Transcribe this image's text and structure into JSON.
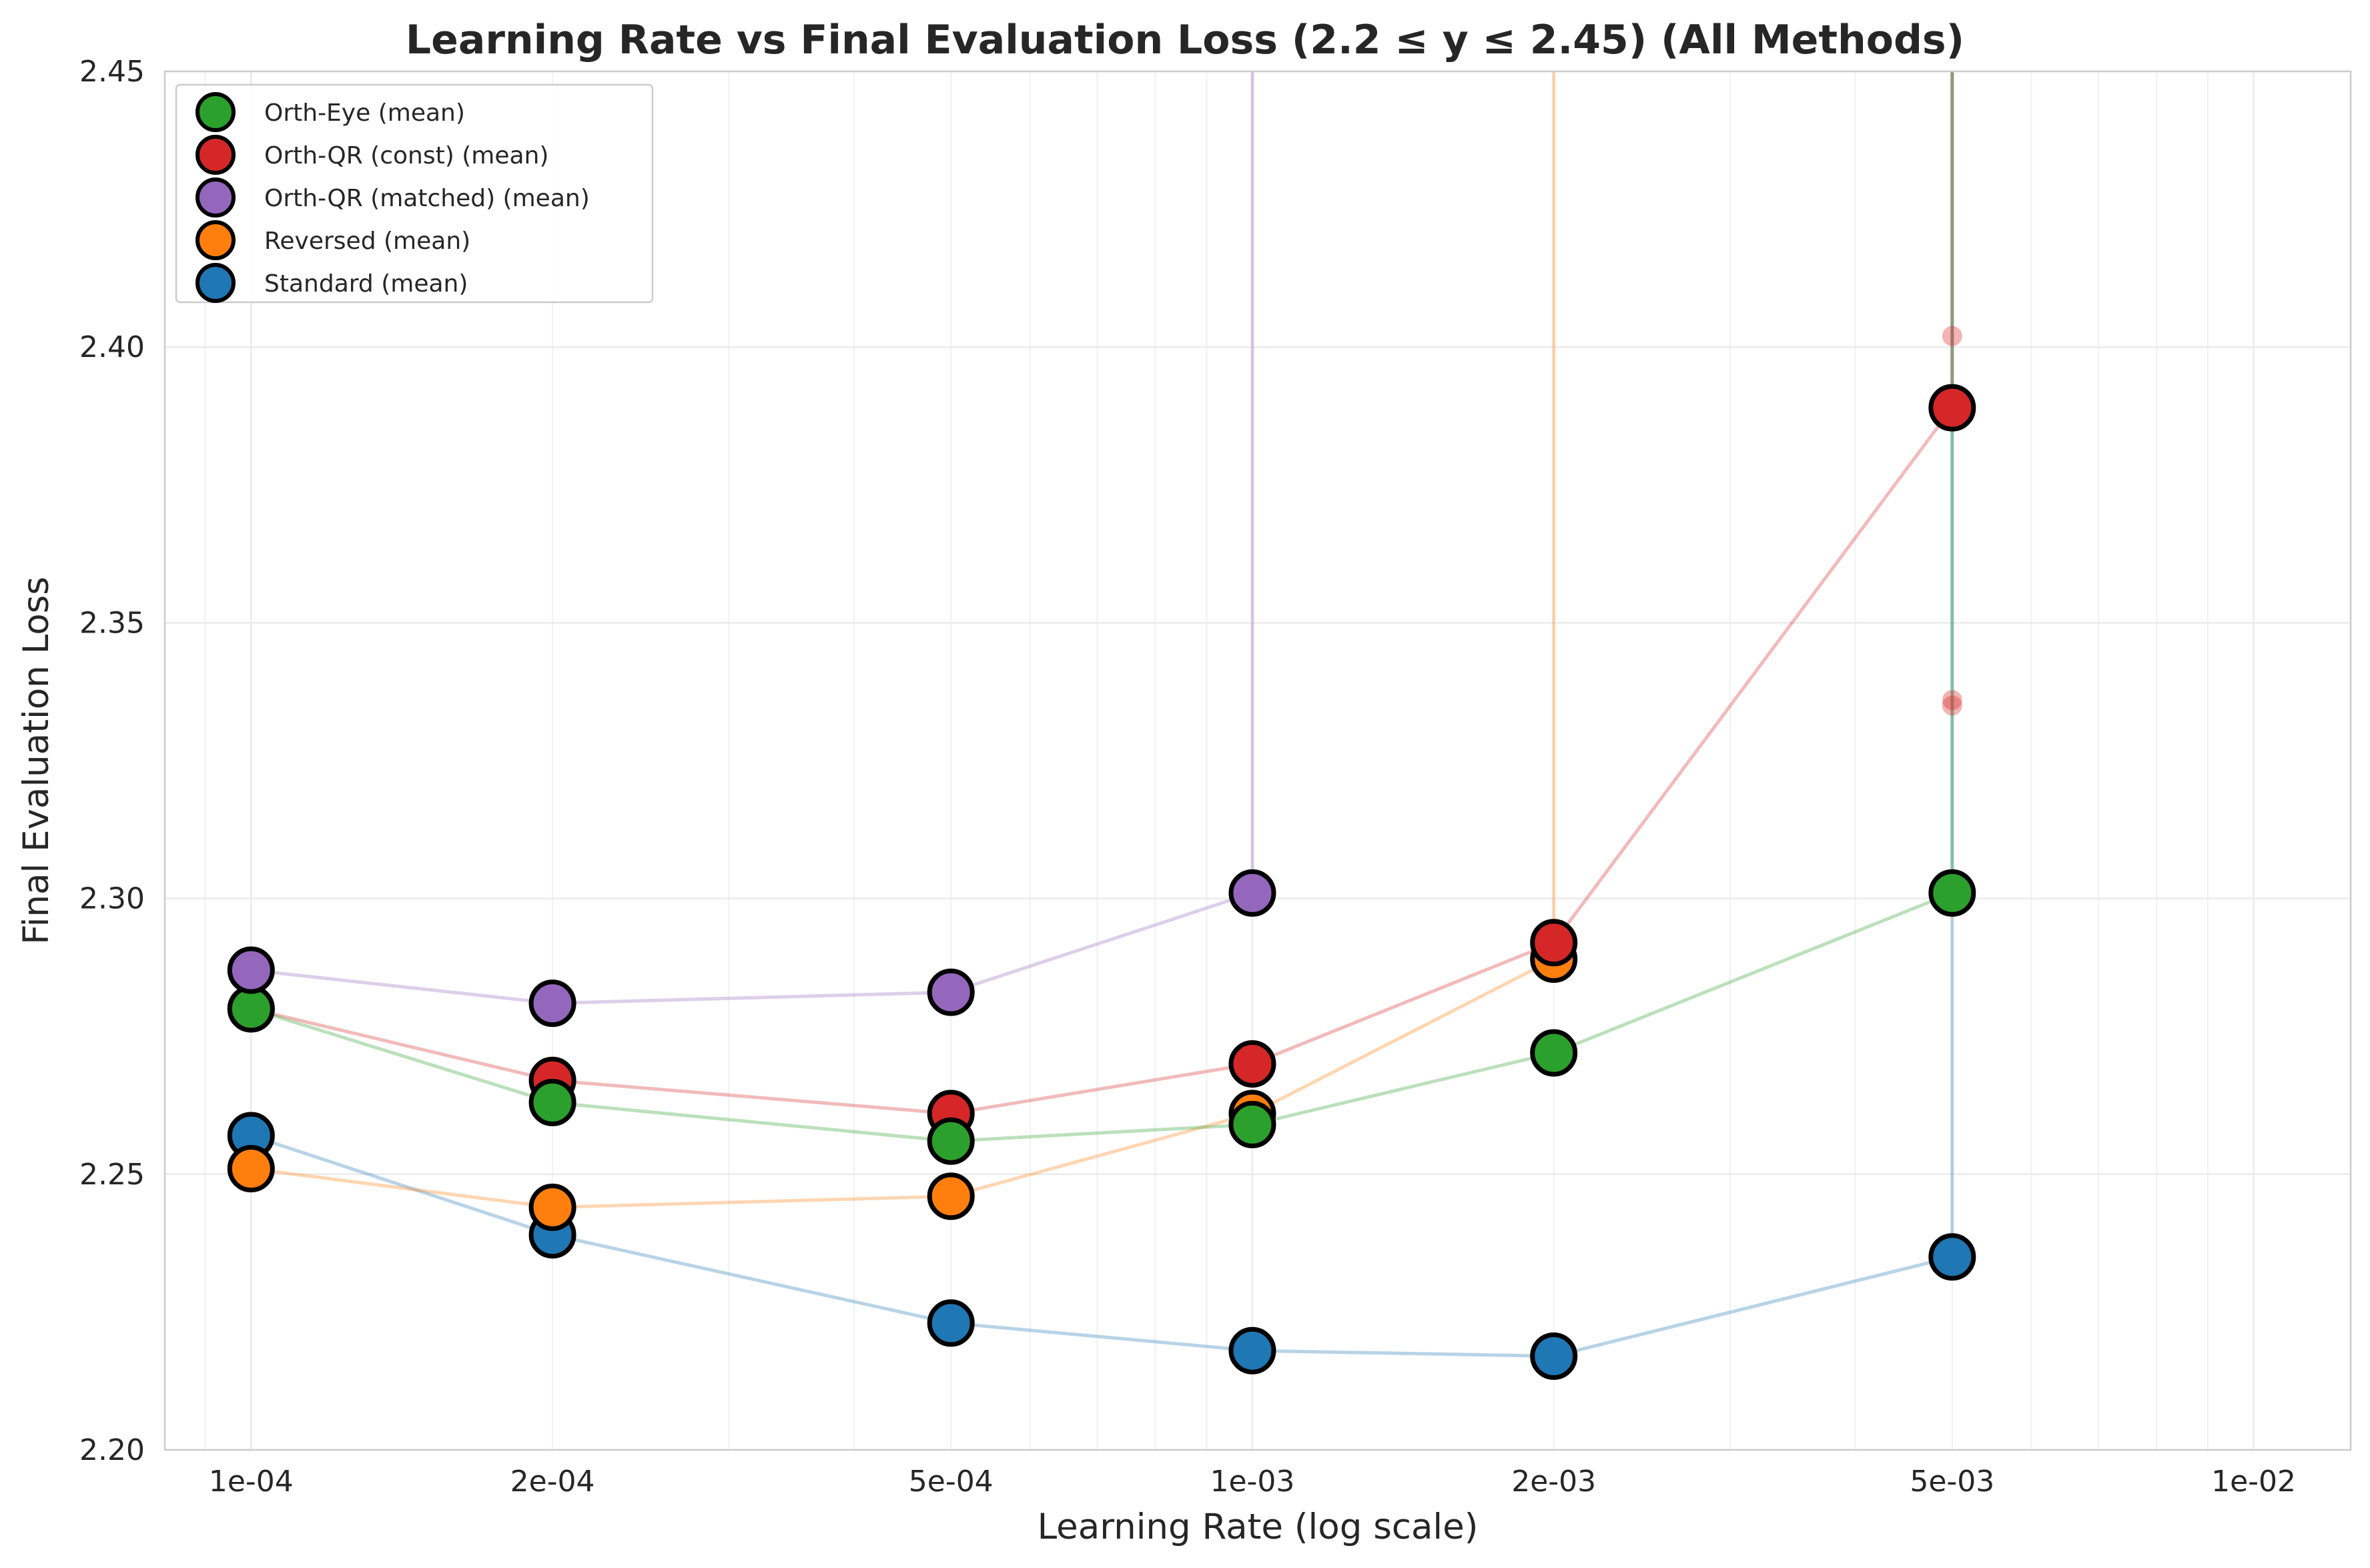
{
  "chart_data": {
    "type": "line",
    "title": "Learning Rate vs Final Evaluation Loss (2.2 ≤ y ≤ 2.45) (All Methods)",
    "xlabel": "Learning Rate (log scale)",
    "ylabel": "Final Evaluation Loss",
    "xscale": "log",
    "xlim": [
      8.2e-05,
      0.0125
    ],
    "ylim": [
      2.2,
      2.45
    ],
    "x_ticks": [
      {
        "value": 0.0001,
        "label": "1e-04"
      },
      {
        "value": 0.0002,
        "label": "2e-04"
      },
      {
        "value": 0.0005,
        "label": "5e-04"
      },
      {
        "value": 0.001,
        "label": "1e-03"
      },
      {
        "value": 0.002,
        "label": "2e-03"
      },
      {
        "value": 0.005,
        "label": "5e-03"
      },
      {
        "value": 0.01,
        "label": "1e-02"
      }
    ],
    "y_ticks": [
      {
        "value": 2.2,
        "label": "2.20"
      },
      {
        "value": 2.25,
        "label": "2.25"
      },
      {
        "value": 2.3,
        "label": "2.30"
      },
      {
        "value": 2.35,
        "label": "2.35"
      },
      {
        "value": 2.4,
        "label": "2.40"
      },
      {
        "value": 2.45,
        "label": "2.45"
      }
    ],
    "grid": true,
    "legend_position": "top-left",
    "series": [
      {
        "name": "Orth-Eye (mean)",
        "color": "#2ca02c",
        "x": [
          0.0001,
          0.0002,
          0.0005,
          0.001,
          0.002,
          0.005
        ],
        "y": [
          2.28,
          2.263,
          2.256,
          2.259,
          2.272,
          2.301
        ],
        "line_tail": [
          0.005,
          2.6
        ]
      },
      {
        "name": "Orth-QR (const) (mean)",
        "color": "#d62728",
        "x": [
          0.0001,
          0.0002,
          0.0005,
          0.001,
          0.002,
          0.005
        ],
        "y": [
          2.28,
          2.267,
          2.261,
          2.27,
          2.292,
          2.389
        ],
        "line_tail": [
          0.005,
          2.6
        ],
        "individual_points": [
          [
            0.005,
            2.402
          ],
          [
            0.005,
            2.336
          ],
          [
            0.005,
            2.335
          ]
        ]
      },
      {
        "name": "Orth-QR (matched) (mean)",
        "color": "#9467bd",
        "x": [
          0.0001,
          0.0002,
          0.0005,
          0.001
        ],
        "y": [
          2.287,
          2.281,
          2.283,
          2.301
        ],
        "line_tail": [
          0.001,
          2.6
        ]
      },
      {
        "name": "Reversed (mean)",
        "color": "#ff7f0e",
        "x": [
          0.0001,
          0.0002,
          0.0005,
          0.001,
          0.002
        ],
        "y": [
          2.251,
          2.244,
          2.246,
          2.261,
          2.289
        ],
        "line_tail": [
          0.002,
          2.6
        ]
      },
      {
        "name": "Standard (mean)",
        "color": "#1f77b4",
        "x": [
          0.0001,
          0.0002,
          0.0005,
          0.001,
          0.002,
          0.005
        ],
        "y": [
          2.257,
          2.239,
          2.223,
          2.218,
          2.217,
          2.235
        ],
        "line_tail": [
          0.005,
          2.6
        ]
      }
    ]
  }
}
